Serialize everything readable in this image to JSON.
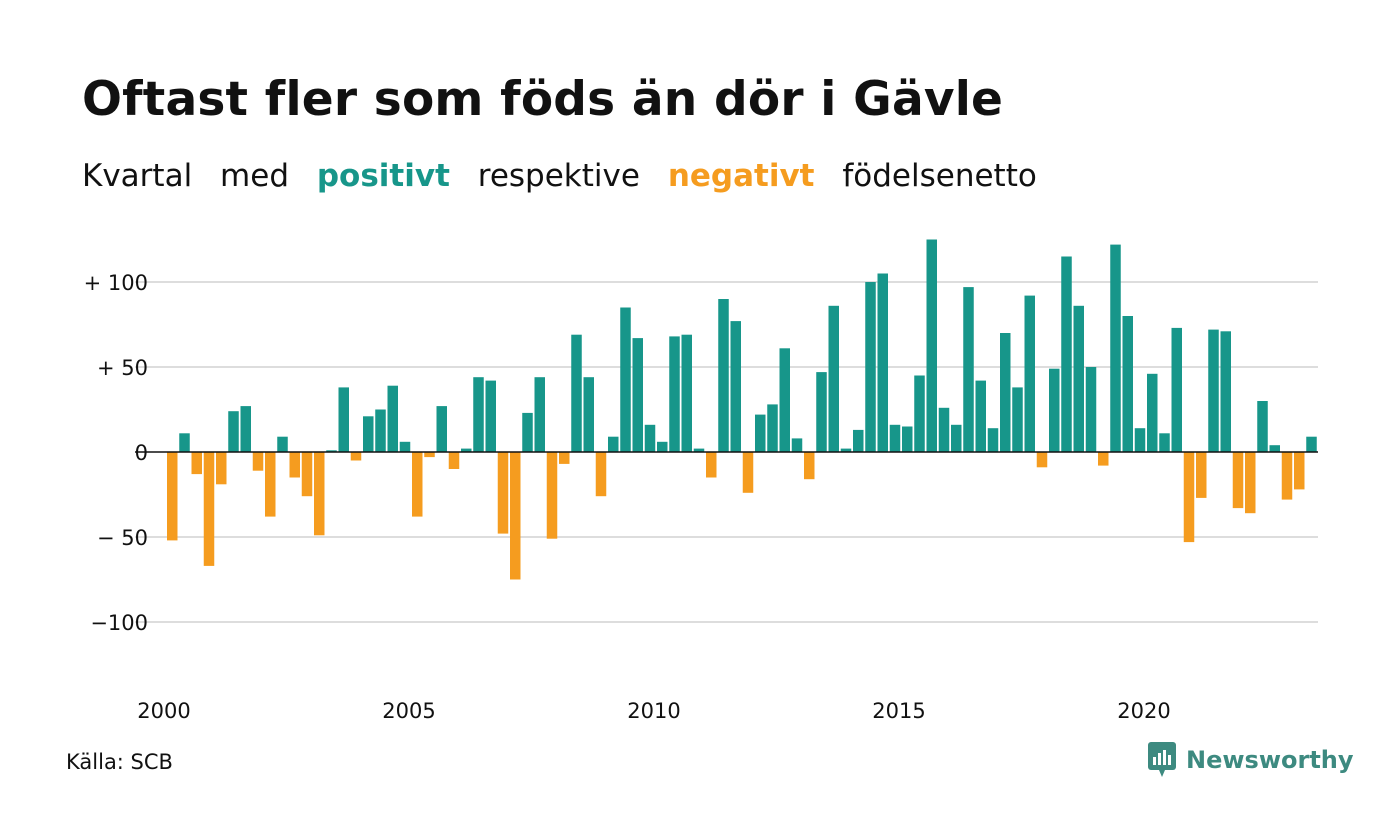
{
  "title": "Oftast fler som föds än dör i Gävle",
  "subtitle": {
    "part1": "Kvartal",
    "part2": "med",
    "positive": "positivt",
    "part3": "respektive",
    "negative": "negativt",
    "part4": "födelsenetto"
  },
  "source": "Källa: SCB",
  "brand": {
    "name": "Newsworthy",
    "icon": "newsworthy-logo-icon"
  },
  "colors": {
    "positive": "#17968a",
    "negative": "#f59c1f",
    "grid": "#dddddd",
    "brand": "#3d8a80"
  },
  "chart_data": {
    "type": "bar",
    "x_start": "2000 Q1",
    "xticks": [
      "2000",
      "2005",
      "2010",
      "2015",
      "2020"
    ],
    "yticks": [
      "+ 100",
      "+  50",
      "0",
      "− 50",
      "−100"
    ],
    "ytick_values": [
      100,
      50,
      0,
      -50,
      -100
    ],
    "ylim": [
      -135,
      130
    ],
    "grid": true,
    "values": [
      -52,
      11,
      -13,
      -67,
      -19,
      24,
      27,
      -11,
      -38,
      9,
      -15,
      -26,
      -49,
      1,
      38,
      -5,
      21,
      25,
      39,
      6,
      -38,
      -3,
      27,
      -10,
      2,
      44,
      42,
      -48,
      -75,
      23,
      44,
      -51,
      -7,
      69,
      44,
      -26,
      9,
      85,
      67,
      16,
      6,
      68,
      69,
      2,
      -15,
      90,
      77,
      -24,
      22,
      28,
      61,
      8,
      -16,
      47,
      86,
      2,
      13,
      100,
      105,
      16,
      15,
      45,
      125,
      26,
      16,
      97,
      42,
      14,
      70,
      38,
      92,
      -9,
      49,
      115,
      86,
      50,
      -8,
      122,
      80,
      14,
      46,
      11,
      73,
      -53,
      -27,
      72,
      71,
      -33,
      -36,
      30,
      4,
      -28,
      -22,
      9
    ]
  }
}
